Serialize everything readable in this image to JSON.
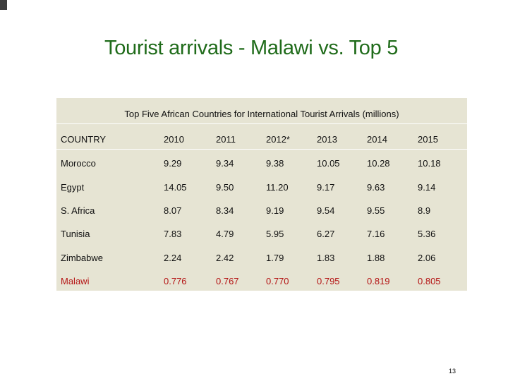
{
  "slide": {
    "title": "Tourist arrivals - Malawi vs. Top 5",
    "page_number": "13"
  },
  "table": {
    "caption": "Top Five African Countries for International Tourist Arrivals (millions)",
    "headers": [
      "COUNTRY",
      "2010",
      "2011",
      "2012*",
      "2013",
      "2014",
      "2015"
    ],
    "rows": [
      [
        "Morocco",
        "9.29",
        "9.34",
        "9.38",
        "10.05",
        "10.28",
        "10.18"
      ],
      [
        "Egypt",
        "14.05",
        "9.50",
        "11.20",
        "9.17",
        "9.63",
        "9.14"
      ],
      [
        "S. Africa",
        "8.07",
        "8.34",
        "9.19",
        "9.54",
        "9.55",
        "8.9"
      ],
      [
        "Tunisia",
        "7.83",
        "4.79",
        "5.95",
        "6.27",
        "7.16",
        "5.36"
      ],
      [
        "Zimbabwe",
        "2.24",
        "2.42",
        "1.79",
        "1.83",
        "1.88",
        "2.06"
      ],
      [
        "Malawi",
        "0.776",
        "0.767",
        "0.770",
        "0.795",
        "0.819",
        "0.805"
      ]
    ],
    "highlight_row": "Malawi",
    "colors": {
      "title": "#1f6b1a",
      "table_background": "#e6e4d3",
      "highlight_text": "#b41414"
    }
  }
}
